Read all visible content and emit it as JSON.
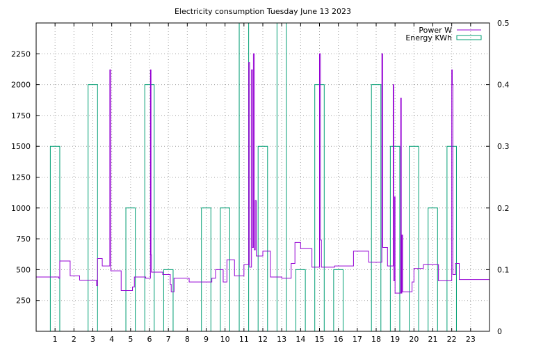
{
  "chart_data": {
    "type": "line",
    "title": "Electricity consumption Tuesday June 13 2023",
    "xlabel": "",
    "ylabel": "",
    "y2label": "",
    "xlim": [
      0,
      24
    ],
    "ylim": [
      0,
      2500
    ],
    "y2lim": [
      0,
      0.5
    ],
    "grid": true,
    "legend_position": "top-right",
    "x_ticks": [
      1,
      2,
      3,
      4,
      5,
      6,
      7,
      8,
      9,
      10,
      11,
      12,
      13,
      14,
      15,
      16,
      17,
      18,
      19,
      20,
      21,
      22,
      23
    ],
    "y_ticks": [
      250,
      500,
      750,
      1000,
      1250,
      1500,
      1750,
      2000,
      2250
    ],
    "y2_ticks": [
      0,
      0.1,
      0.2,
      0.3,
      0.4,
      0.5
    ],
    "colors": {
      "power": "#9400d3",
      "energy": "#009e73",
      "grid": "#a0a0a0",
      "axis": "#000000"
    },
    "series": [
      {
        "name": "Power W",
        "axis": "y",
        "style": "steps",
        "points": [
          [
            0,
            440
          ],
          [
            1.2,
            430
          ],
          [
            1.25,
            570
          ],
          [
            1.8,
            570
          ],
          [
            1.8,
            450
          ],
          [
            2.3,
            450
          ],
          [
            2.3,
            415
          ],
          [
            3.2,
            415
          ],
          [
            3.2,
            370
          ],
          [
            3.25,
            590
          ],
          [
            3.5,
            590
          ],
          [
            3.5,
            530
          ],
          [
            3.9,
            530
          ],
          [
            3.9,
            2120
          ],
          [
            3.95,
            490
          ],
          [
            4.5,
            490
          ],
          [
            4.5,
            330
          ],
          [
            5.1,
            330
          ],
          [
            5.1,
            360
          ],
          [
            5.2,
            440
          ],
          [
            5.8,
            440
          ],
          [
            5.8,
            430
          ],
          [
            6.05,
            430
          ],
          [
            6.05,
            2120
          ],
          [
            6.08,
            620
          ],
          [
            6.1,
            480
          ],
          [
            6.7,
            480
          ],
          [
            6.7,
            460
          ],
          [
            7.1,
            460
          ],
          [
            7.1,
            380
          ],
          [
            7.15,
            320
          ],
          [
            7.3,
            320
          ],
          [
            7.3,
            430
          ],
          [
            8.1,
            430
          ],
          [
            8.1,
            400
          ],
          [
            9.3,
            400
          ],
          [
            9.3,
            430
          ],
          [
            9.5,
            430
          ],
          [
            9.5,
            500
          ],
          [
            9.9,
            500
          ],
          [
            9.9,
            400
          ],
          [
            10.1,
            400
          ],
          [
            10.1,
            580
          ],
          [
            10.5,
            580
          ],
          [
            10.5,
            450
          ],
          [
            11.0,
            450
          ],
          [
            11.0,
            540
          ],
          [
            11.25,
            540
          ],
          [
            11.25,
            2180
          ],
          [
            11.3,
            520
          ],
          [
            11.4,
            520
          ],
          [
            11.4,
            2120
          ],
          [
            11.45,
            680
          ],
          [
            11.5,
            680
          ],
          [
            11.5,
            2250
          ],
          [
            11.55,
            660
          ],
          [
            11.6,
            660
          ],
          [
            11.6,
            1060
          ],
          [
            11.65,
            610
          ],
          [
            12.0,
            610
          ],
          [
            12.0,
            650
          ],
          [
            12.4,
            650
          ],
          [
            12.4,
            440
          ],
          [
            13.0,
            440
          ],
          [
            13.0,
            430
          ],
          [
            13.5,
            430
          ],
          [
            13.5,
            550
          ],
          [
            13.7,
            550
          ],
          [
            13.7,
            720
          ],
          [
            14.0,
            720
          ],
          [
            14.0,
            670
          ],
          [
            14.6,
            670
          ],
          [
            14.6,
            520
          ],
          [
            15.0,
            520
          ],
          [
            15.0,
            2250
          ],
          [
            15.05,
            740
          ],
          [
            15.1,
            520
          ],
          [
            15.8,
            520
          ],
          [
            15.8,
            530
          ],
          [
            16.8,
            530
          ],
          [
            16.8,
            650
          ],
          [
            17.6,
            650
          ],
          [
            17.6,
            560
          ],
          [
            18.3,
            560
          ],
          [
            18.3,
            2250
          ],
          [
            18.35,
            680
          ],
          [
            18.6,
            680
          ],
          [
            18.6,
            530
          ],
          [
            18.9,
            530
          ],
          [
            18.9,
            2000
          ],
          [
            18.93,
            410
          ],
          [
            18.98,
            1090
          ],
          [
            19.0,
            310
          ],
          [
            19.3,
            310
          ],
          [
            19.3,
            1890
          ],
          [
            19.33,
            310
          ],
          [
            19.36,
            780
          ],
          [
            19.4,
            320
          ],
          [
            19.9,
            320
          ],
          [
            19.9,
            400
          ],
          [
            20.0,
            510
          ],
          [
            20.5,
            510
          ],
          [
            20.5,
            540
          ],
          [
            21.3,
            540
          ],
          [
            21.3,
            410
          ],
          [
            22.0,
            410
          ],
          [
            22.0,
            2120
          ],
          [
            22.03,
            2000
          ],
          [
            22.06,
            460
          ],
          [
            22.2,
            460
          ],
          [
            22.2,
            550
          ],
          [
            22.4,
            550
          ],
          [
            22.4,
            420
          ],
          [
            24.0,
            420
          ]
        ]
      },
      {
        "name": "Energy KWh",
        "axis": "y2",
        "style": "impulse-bars",
        "bars": [
          {
            "x": 1,
            "value": 0.3
          },
          {
            "x": 3,
            "value": 0.4
          },
          {
            "x": 5,
            "value": 0.2
          },
          {
            "x": 6,
            "value": 0.4
          },
          {
            "x": 7,
            "value": 0.1
          },
          {
            "x": 9,
            "value": 0.2
          },
          {
            "x": 10,
            "value": 0.2
          },
          {
            "x": 11,
            "value": 0.5
          },
          {
            "x": 12,
            "value": 0.3
          },
          {
            "x": 13,
            "value": 0.5
          },
          {
            "x": 14,
            "value": 0.1
          },
          {
            "x": 15,
            "value": 0.4
          },
          {
            "x": 16,
            "value": 0.1
          },
          {
            "x": 18,
            "value": 0.4
          },
          {
            "x": 19,
            "value": 0.3
          },
          {
            "x": 20,
            "value": 0.3
          },
          {
            "x": 21,
            "value": 0.2
          },
          {
            "x": 22,
            "value": 0.3
          }
        ]
      }
    ]
  }
}
